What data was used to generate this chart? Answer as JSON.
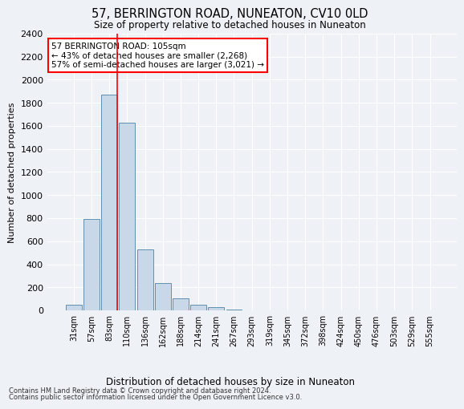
{
  "title": "57, BERRINGTON ROAD, NUNEATON, CV10 0LD",
  "subtitle": "Size of property relative to detached houses in Nuneaton",
  "xlabel": "Distribution of detached houses by size in Nuneaton",
  "ylabel": "Number of detached properties",
  "bar_labels": [
    "31sqm",
    "57sqm",
    "83sqm",
    "110sqm",
    "136sqm",
    "162sqm",
    "188sqm",
    "214sqm",
    "241sqm",
    "267sqm",
    "293sqm",
    "319sqm",
    "345sqm",
    "372sqm",
    "398sqm",
    "424sqm",
    "450sqm",
    "476sqm",
    "503sqm",
    "529sqm",
    "555sqm"
  ],
  "bar_values": [
    50,
    790,
    1870,
    1630,
    530,
    235,
    105,
    50,
    30,
    10,
    0,
    0,
    0,
    0,
    0,
    0,
    0,
    0,
    0,
    0,
    0
  ],
  "bar_color": "#c8d8e8",
  "bar_edge_color": "#6090b0",
  "property_size": 105,
  "annotation_title": "57 BERRINGTON ROAD: 105sqm",
  "annotation_line1": "← 43% of detached houses are smaller (2,268)",
  "annotation_line2": "57% of semi-detached houses are larger (3,021) →",
  "annotation_box_color": "white",
  "annotation_box_edge": "red",
  "ylim": [
    0,
    2400
  ],
  "yticks": [
    0,
    200,
    400,
    600,
    800,
    1000,
    1200,
    1400,
    1600,
    1800,
    2000,
    2200,
    2400
  ],
  "footnote1": "Contains HM Land Registry data © Crown copyright and database right 2024.",
  "footnote2": "Contains public sector information licensed under the Open Government Licence v3.0.",
  "background_color": "#eef2f7",
  "grid_color": "#ffffff"
}
